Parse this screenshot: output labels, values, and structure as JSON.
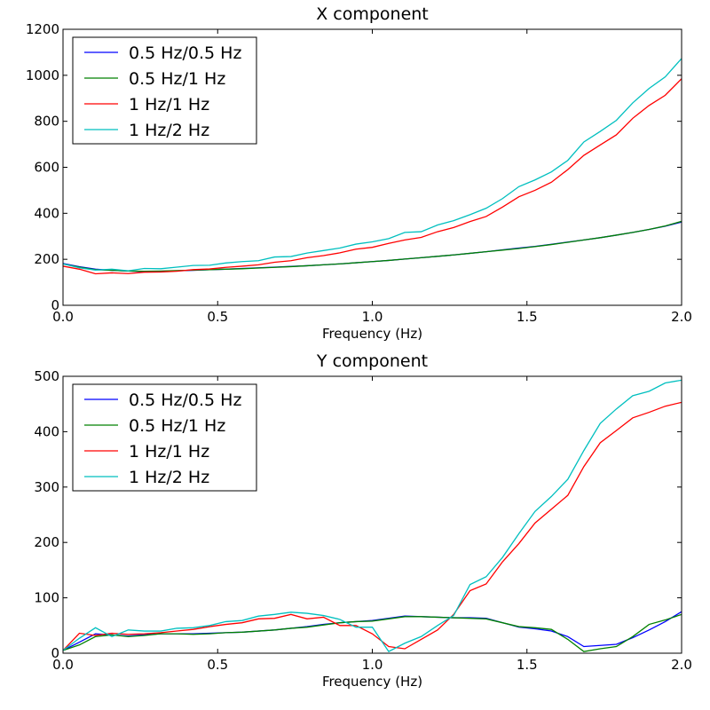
{
  "chart_data": [
    {
      "type": "line",
      "title": "X component",
      "xlabel": "Frequency (Hz)",
      "ylabel": "",
      "xlim": [
        0.0,
        2.0
      ],
      "ylim": [
        0,
        1200
      ],
      "xticks": [
        "0.0",
        "0.5",
        "1.0",
        "1.5",
        "2.0"
      ],
      "yticks": [
        "0",
        "200",
        "400",
        "600",
        "800",
        "1000",
        "1200"
      ],
      "grid": false,
      "legend_position": "top-left",
      "x": [
        0.0,
        0.053,
        0.105,
        0.158,
        0.211,
        0.263,
        0.316,
        0.368,
        0.421,
        0.474,
        0.526,
        0.579,
        0.632,
        0.684,
        0.737,
        0.789,
        0.842,
        0.895,
        0.947,
        1.0,
        1.053,
        1.105,
        1.158,
        1.211,
        1.263,
        1.316,
        1.368,
        1.421,
        1.474,
        1.526,
        1.579,
        1.632,
        1.684,
        1.737,
        1.789,
        1.842,
        1.895,
        1.947,
        2.0
      ],
      "series": [
        {
          "name": "0.5 Hz/0.5 Hz",
          "color": "#0000ff",
          "values": [
            182,
            168,
            157,
            152,
            149,
            147,
            148,
            150,
            152,
            155,
            157,
            160,
            163,
            166,
            169,
            172,
            176,
            180,
            185,
            190,
            195,
            201,
            207,
            213,
            219,
            226,
            233,
            241,
            249,
            256,
            265,
            275,
            284,
            294,
            305,
            317,
            330,
            344,
            362
          ]
        },
        {
          "name": "0.5 Hz/1 Hz",
          "color": "#008000",
          "values": [
            180,
            166,
            155,
            152,
            149,
            148,
            149,
            151,
            153,
            155,
            157,
            159,
            162,
            165,
            168,
            172,
            176,
            180,
            185,
            190,
            195,
            201,
            207,
            213,
            219,
            226,
            233,
            240,
            247,
            255,
            264,
            274,
            284,
            294,
            305,
            317,
            330,
            345,
            365
          ]
        },
        {
          "name": "1 Hz/1 Hz",
          "color": "#ff0000",
          "values": [
            170,
            157,
            137,
            141,
            138,
            144,
            145,
            148,
            155,
            158,
            165,
            170,
            176,
            187,
            194,
            207,
            216,
            228,
            244,
            252,
            269,
            284,
            295,
            320,
            338,
            364,
            386,
            427,
            472,
            500,
            535,
            590,
            652,
            697,
            741,
            813,
            869,
            913,
            985
          ]
        },
        {
          "name": "1 Hz/2 Hz",
          "color": "#00bfbf",
          "values": [
            180,
            163,
            153,
            157,
            150,
            160,
            159,
            166,
            173,
            174,
            184,
            190,
            194,
            210,
            212,
            227,
            238,
            249,
            266,
            276,
            290,
            317,
            320,
            349,
            368,
            394,
            422,
            464,
            516,
            545,
            580,
            630,
            710,
            756,
            804,
            880,
            943,
            993,
            1073
          ]
        }
      ]
    },
    {
      "type": "line",
      "title": "Y component",
      "xlabel": "Frequency (Hz)",
      "ylabel": "",
      "xlim": [
        0.0,
        2.0
      ],
      "ylim": [
        0,
        500
      ],
      "xticks": [
        "0.0",
        "0.5",
        "1.0",
        "1.5",
        "2.0"
      ],
      "yticks": [
        "0",
        "100",
        "200",
        "300",
        "400",
        "500"
      ],
      "grid": false,
      "legend_position": "top-left",
      "x": [
        0.0,
        0.053,
        0.105,
        0.158,
        0.211,
        0.263,
        0.316,
        0.368,
        0.421,
        0.474,
        0.526,
        0.579,
        0.632,
        0.684,
        0.737,
        0.789,
        0.842,
        0.895,
        0.947,
        1.0,
        1.053,
        1.105,
        1.158,
        1.211,
        1.263,
        1.316,
        1.368,
        1.421,
        1.474,
        1.526,
        1.579,
        1.632,
        1.684,
        1.737,
        1.789,
        1.842,
        1.895,
        1.947,
        2.0
      ],
      "series": [
        {
          "name": "0.5 Hz/0.5 Hz",
          "color": "#0000ff",
          "values": [
            5,
            20,
            35,
            33,
            31,
            33,
            35,
            35,
            35,
            36,
            37,
            38,
            40,
            42,
            45,
            48,
            52,
            55,
            57,
            59,
            63,
            67,
            66,
            65,
            64,
            64,
            63,
            55,
            47,
            44,
            40,
            30,
            12,
            14,
            16,
            28,
            42,
            57,
            75
          ]
        },
        {
          "name": "0.5 Hz/1 Hz",
          "color": "#008000",
          "values": [
            5,
            15,
            30,
            33,
            30,
            32,
            35,
            35,
            34,
            35,
            37,
            38,
            40,
            42,
            45,
            47,
            51,
            55,
            57,
            58,
            62,
            66,
            66,
            65,
            64,
            63,
            62,
            55,
            48,
            46,
            43,
            25,
            3,
            8,
            12,
            30,
            52,
            60,
            70
          ]
        },
        {
          "name": "1 Hz/1 Hz",
          "color": "#ff0000",
          "values": [
            5,
            36,
            32,
            36,
            34,
            35,
            37,
            40,
            43,
            48,
            52,
            55,
            62,
            63,
            70,
            62,
            65,
            50,
            50,
            35,
            12,
            8,
            25,
            42,
            70,
            113,
            125,
            165,
            198,
            235,
            260,
            285,
            337,
            380,
            402,
            425,
            435,
            446,
            453
          ]
        },
        {
          "name": "1 Hz/2 Hz",
          "color": "#00bfbf",
          "values": [
            5,
            27,
            46,
            30,
            42,
            40,
            40,
            45,
            46,
            50,
            57,
            59,
            67,
            70,
            74,
            72,
            68,
            61,
            47,
            47,
            3,
            18,
            30,
            50,
            68,
            124,
            138,
            173,
            216,
            256,
            283,
            314,
            366,
            415,
            441,
            465,
            473,
            488,
            493
          ]
        }
      ]
    }
  ]
}
